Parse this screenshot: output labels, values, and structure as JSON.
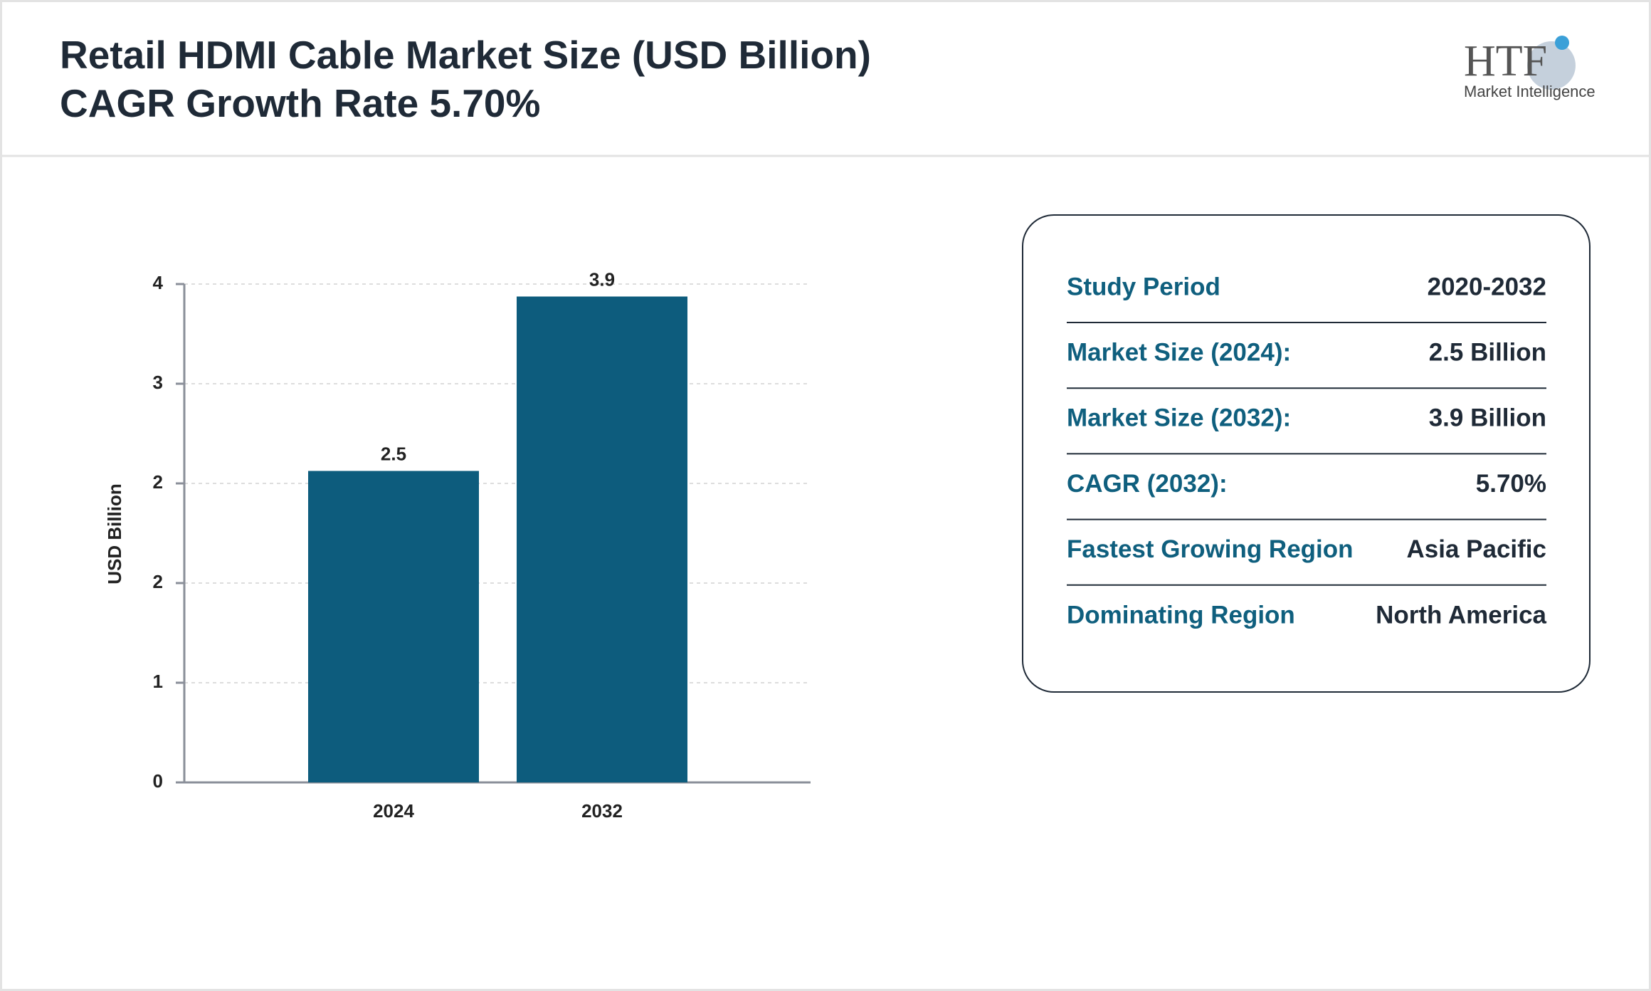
{
  "header": {
    "title_line1": "Retail HDMI Cable Market Size (USD Billion)",
    "title_line2": "CAGR Growth Rate 5.70%"
  },
  "logo": {
    "brand": "HTF",
    "tagline": "Market Intelligence"
  },
  "chart_data": {
    "type": "bar",
    "y_label": "USD Billion",
    "categories": [
      "2024",
      "2032"
    ],
    "values": [
      2.5,
      3.9
    ],
    "color": "#0d5c7d",
    "ylim": [
      0,
      4
    ],
    "yticks": [
      0,
      {
        "value": 0.8,
        "label": "1"
      },
      {
        "value": 1.6,
        "label": "2"
      },
      {
        "value": 2.4,
        "label": "2"
      },
      {
        "value": 3.2,
        "label": "3"
      },
      4
    ],
    "grid": true
  },
  "summary": {
    "rows": [
      [
        "Study Period",
        "2020-2032"
      ],
      [
        "Market Size (2024):",
        "2.5 Billion"
      ],
      [
        "Market Size (2032):",
        "3.9 Billion"
      ],
      [
        "CAGR (2032):",
        "5.70%"
      ],
      [
        "Fastest Growing Region",
        "Asia Pacific"
      ],
      [
        "Dominating Region",
        "North America"
      ]
    ]
  }
}
